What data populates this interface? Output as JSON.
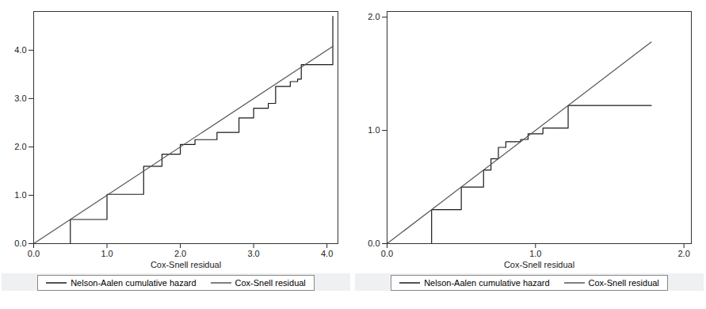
{
  "chart_data": [
    {
      "type": "line",
      "x_label": "Cox-Snell residual",
      "xlim": [
        0,
        4.15
      ],
      "xticks": [
        0,
        1,
        2,
        3,
        4
      ],
      "ylim": [
        0,
        4.8
      ],
      "yticks": [
        0,
        1,
        2,
        3,
        4
      ],
      "legend": "bottom",
      "series": [
        {
          "name": "Nelson-Aalen cumulative hazard",
          "type": "step",
          "color": "#1a1a1a",
          "x": [
            0,
            0.5,
            1.0,
            1.5,
            1.75,
            2.0,
            2.2,
            2.5,
            2.8,
            3.0,
            3.2,
            3.3,
            3.5,
            3.6,
            3.65,
            4.0,
            4.05,
            4.08
          ],
          "values": [
            0,
            0.5,
            1.02,
            1.6,
            1.85,
            2.05,
            2.15,
            2.3,
            2.6,
            2.8,
            2.9,
            3.25,
            3.35,
            3.4,
            3.7,
            3.7,
            3.7,
            4.7
          ]
        },
        {
          "name": "Cox-Snell residual",
          "type": "line",
          "color": "#555555",
          "x": [
            0,
            4.08
          ],
          "values": [
            0,
            4.08
          ]
        }
      ]
    },
    {
      "type": "line",
      "x_label": "Cox-Snell residual",
      "xlim": [
        0,
        2.05
      ],
      "xticks": [
        0,
        1,
        2
      ],
      "ylim": [
        0,
        2.05
      ],
      "yticks": [
        0,
        1,
        2
      ],
      "legend": "bottom",
      "series": [
        {
          "name": "Nelson-Aalen cumulative hazard",
          "type": "step",
          "color": "#1a1a1a",
          "x": [
            0,
            0.3,
            0.5,
            0.65,
            0.7,
            0.75,
            0.8,
            0.9,
            0.95,
            1.05,
            1.22,
            1.78
          ],
          "values": [
            0,
            0.3,
            0.5,
            0.65,
            0.75,
            0.85,
            0.9,
            0.92,
            0.97,
            1.02,
            1.22,
            1.22
          ]
        },
        {
          "name": "Cox-Snell residual",
          "type": "line",
          "color": "#555555",
          "x": [
            0,
            1.78
          ],
          "values": [
            0,
            1.78
          ]
        }
      ]
    }
  ]
}
